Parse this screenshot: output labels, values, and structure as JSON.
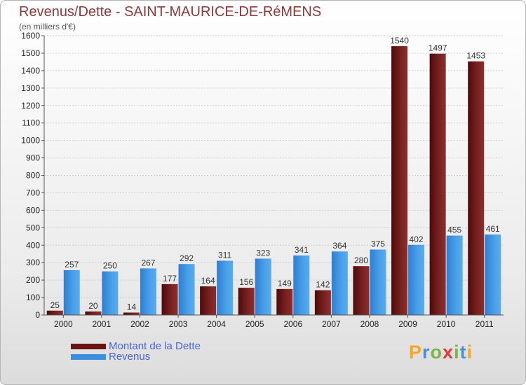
{
  "title": "Revenus/Dette - SAINT-MAURICE-DE-RéMENS",
  "subtitle": "(en milliers d'€)",
  "logo": {
    "text": "Proxiti",
    "letters": [
      "P",
      "r",
      "o",
      "x",
      "i",
      "t",
      "i"
    ],
    "colors": [
      "#f5a623",
      "#4a90d9",
      "#7cb342",
      "#e53935",
      "#7cb342",
      "#4a90d9",
      "#f5a623"
    ]
  },
  "colors": {
    "dette": "#6b1414",
    "revenus": "#3d8fdd"
  },
  "chart_data": {
    "type": "bar",
    "categories": [
      "2000",
      "2001",
      "2002",
      "2003",
      "2004",
      "2005",
      "2006",
      "2007",
      "2008",
      "2009",
      "2010",
      "2011"
    ],
    "series": [
      {
        "name": "Montant de la Dette",
        "values": [
          25,
          20,
          14,
          177,
          164,
          156,
          149,
          142,
          280,
          1540,
          1497,
          1453
        ]
      },
      {
        "name": "Revenus",
        "values": [
          257,
          250,
          267,
          292,
          311,
          323,
          341,
          364,
          375,
          402,
          455,
          461
        ]
      }
    ],
    "ylim": [
      0,
      1600
    ],
    "yticks": [
      0,
      100,
      200,
      300,
      400,
      500,
      600,
      700,
      800,
      900,
      1000,
      1100,
      1200,
      1300,
      1400,
      1500,
      1600
    ],
    "grid": true,
    "legend": "bottom-left"
  }
}
